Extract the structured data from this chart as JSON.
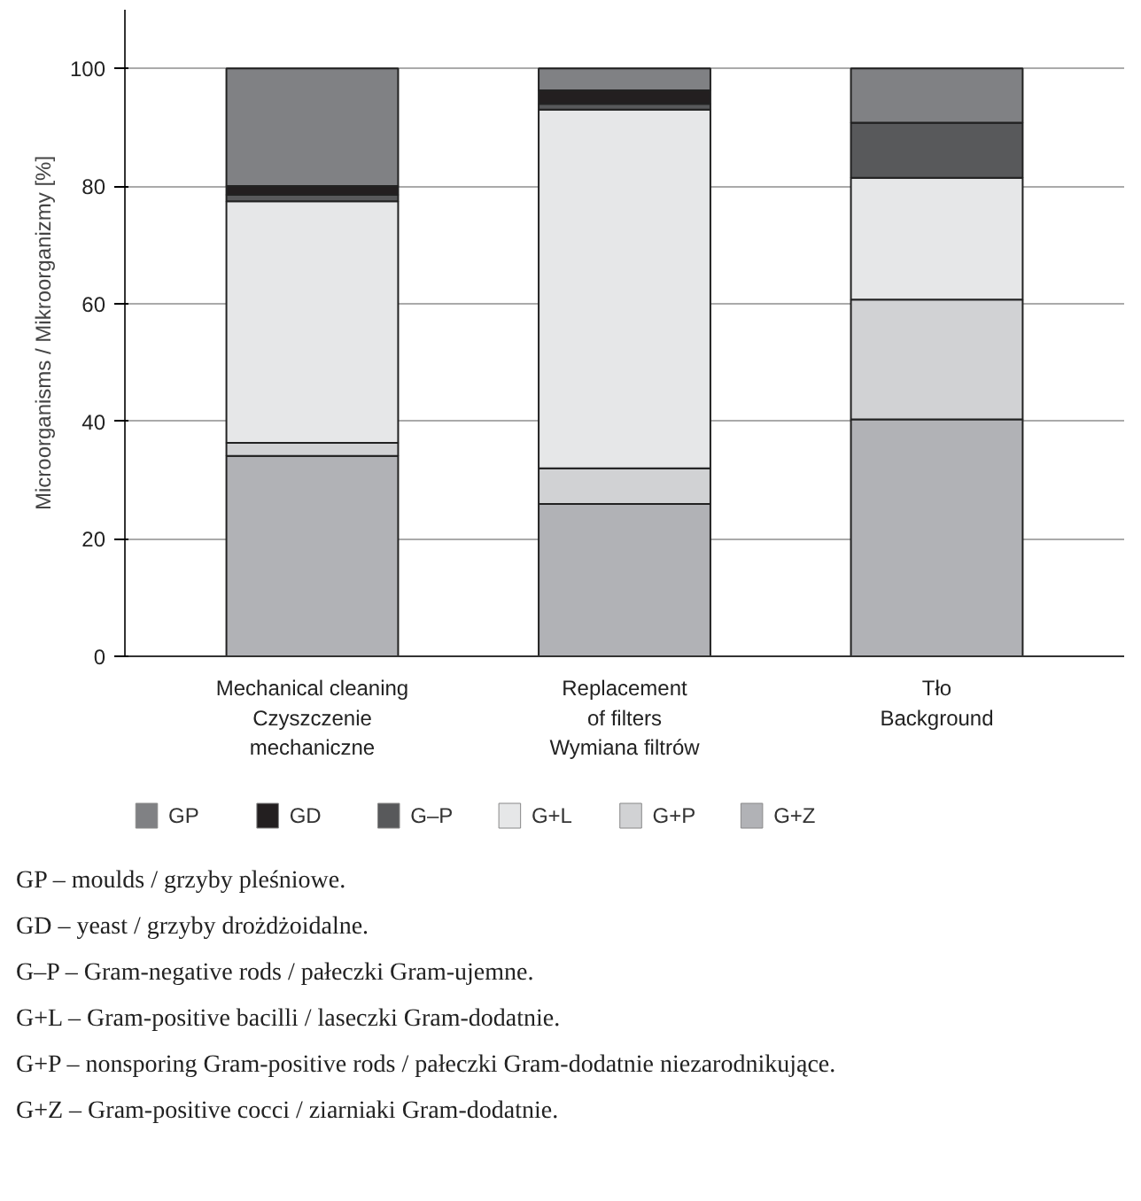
{
  "chart_data": {
    "type": "bar",
    "stacked": true,
    "ylabel": "Microorganisms / Mikroorganizmy [%]",
    "categories": [
      "Mechanical cleaning\nCzyszczenie\nmechaniczne",
      "Replacement\nof filters\nWymiana filtrów",
      "Tło\nBackground"
    ],
    "series": [
      {
        "name": "G+Z",
        "color": "#b1b2b6",
        "values": [
          34.1,
          25.9,
          40.3
        ]
      },
      {
        "name": "G+P",
        "color": "#d1d2d4",
        "values": [
          2.2,
          6.1,
          20.4
        ]
      },
      {
        "name": "G+L",
        "color": "#e6e7e8",
        "values": [
          41.1,
          61.0,
          20.7
        ]
      },
      {
        "name": "G–P",
        "color": "#58595b",
        "values": [
          1.1,
          1.0,
          9.4
        ]
      },
      {
        "name": "GD",
        "color": "#231f20",
        "values": [
          1.5,
          2.3,
          0
        ]
      },
      {
        "name": "GP",
        "color": "#808184",
        "values": [
          20.0,
          3.7,
          9.2
        ]
      }
    ],
    "ylim": [
      0,
      110
    ],
    "yticks": [
      0,
      20,
      40,
      60,
      80,
      100
    ],
    "grid": "y",
    "legend": "bottom",
    "annotations": [
      "GP – moulds / grzyby pleśniowe.",
      "GD – yeast / grzyby drożdżoidalne.",
      "G–P – Gram-negative rods / pałeczki Gram-ujemne.",
      "G+L – Gram-positive bacilli / laseczki Gram-dodatnie.",
      "G+P – nonsporing Gram-positive rods / pałeczki Gram-dodatnie niezarodnikujące.",
      "G+Z – Gram-positive cocci / ziarniaki Gram-dodatnie."
    ]
  }
}
